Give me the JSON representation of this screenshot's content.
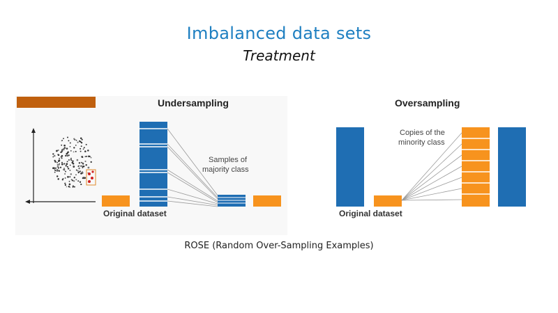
{
  "slide": {
    "title": "Imbalanced data sets",
    "subtitle": "Treatment",
    "caption": "ROSE (Random Over-Sampling Examples)"
  },
  "undersampling": {
    "heading": "Undersampling",
    "note_line1": "Samples of",
    "note_line2": "majority class",
    "dataset_label": "Original dataset"
  },
  "oversampling": {
    "heading": "Oversampling",
    "note_line1": "Copies of the",
    "note_line2": "minority class",
    "dataset_label": "Original dataset"
  },
  "colors": {
    "majority": "#1f6eb3",
    "minority": "#f7931e",
    "banner": "#c0600e",
    "title": "#1e7fc1"
  }
}
